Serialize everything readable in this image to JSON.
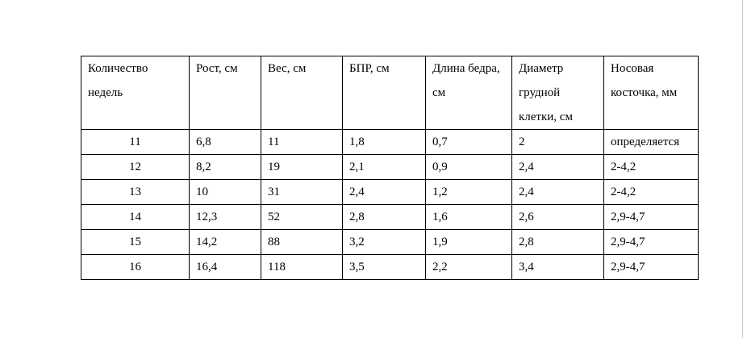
{
  "table": {
    "header": [
      "Количество недель",
      "Рост, см",
      "Вес, см",
      "БПР, см",
      "Длина бедра, см",
      "Диаметр грудной клетки, см",
      "Носовая косточка, мм"
    ],
    "rows": [
      [
        "11",
        "6,8",
        "11",
        "1,8",
        "0,7",
        "2",
        "определяется"
      ],
      [
        "12",
        "8,2",
        "19",
        "2,1",
        "0,9",
        "2,4",
        "2-4,2"
      ],
      [
        "13",
        "10",
        "31",
        "2,4",
        "1,2",
        "2,4",
        "2-4,2"
      ],
      [
        "14",
        "12,3",
        "52",
        "2,8",
        "1,6",
        "2,6",
        "2,9-4,7"
      ],
      [
        "15",
        "14,2",
        "88",
        "3,2",
        "1,9",
        "2,8",
        "2,9-4,7"
      ],
      [
        "16",
        "16,4",
        "118",
        "3,5",
        "2,2",
        "3,4",
        "2,9-4,7"
      ]
    ]
  }
}
